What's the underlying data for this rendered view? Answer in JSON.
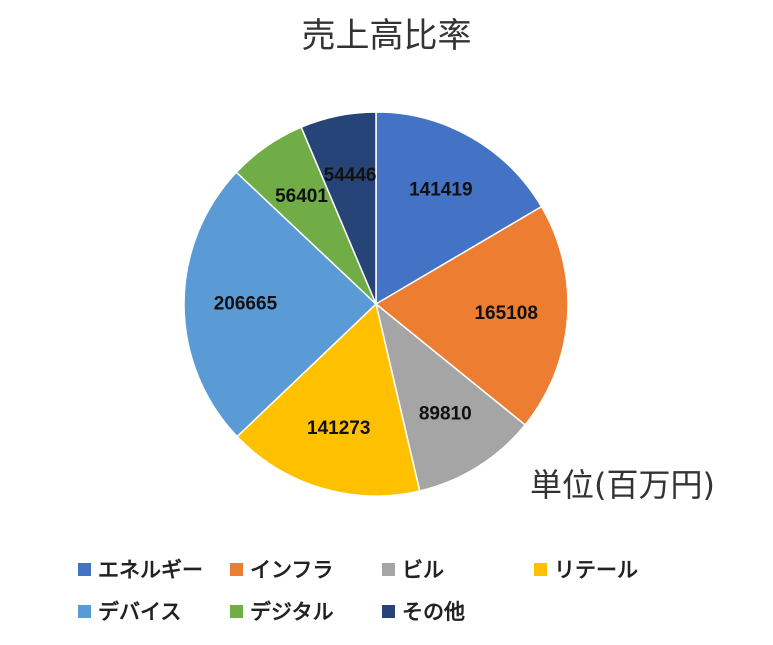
{
  "chart_data": {
    "type": "pie",
    "title": "売上高比率",
    "unit_note": "単位(百万円)",
    "start_angle_deg": 0,
    "direction": "clockwise",
    "legend_position": "bottom",
    "categories": [
      "エネルギー",
      "インフラ",
      "ビル",
      "リテール",
      "デバイス",
      "デジタル",
      "その他"
    ],
    "values": [
      141419,
      165108,
      89810,
      141273,
      206665,
      56401,
      54446
    ],
    "colors": [
      "#4472C4",
      "#ED7D31",
      "#A5A5A5",
      "#FFC000",
      "#5B9BD5",
      "#70AD47",
      "#264478"
    ]
  }
}
